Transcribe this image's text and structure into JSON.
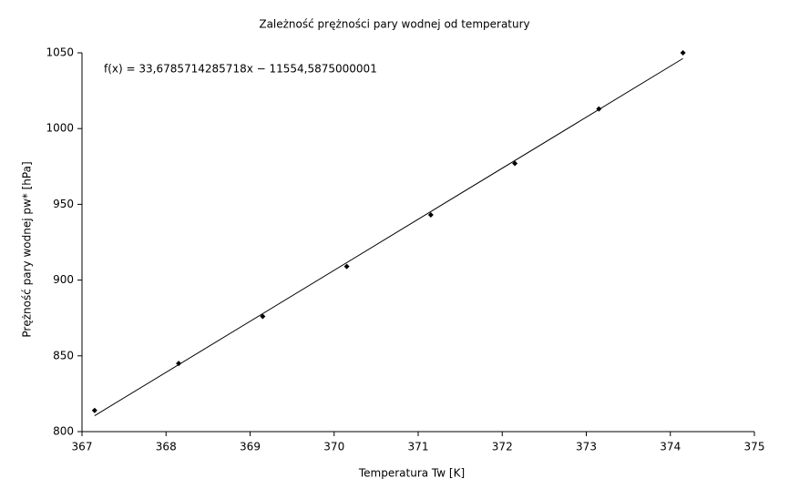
{
  "chart_data": {
    "type": "scatter",
    "title": "Zależność prężności pary wodnej od temperatury",
    "x_label": "Temperatura Tw [K]",
    "y_label": "Prężność pary wodnej pw* [hPa]",
    "annotation": "f(x) = 33,6785714285718x − 11554,5875000001",
    "series": [
      {
        "type": "scatter",
        "color": "#000000",
        "x": [
          367.15,
          368.15,
          369.15,
          370.15,
          371.15,
          372.15,
          373.15,
          374.15
        ],
        "values": [
          814,
          845,
          876,
          909,
          943,
          977,
          1013,
          1050
        ]
      },
      {
        "type": "line",
        "color": "#000000",
        "x": [
          367.15,
          374.15
        ],
        "values": [
          810.5,
          1046.25
        ]
      }
    ],
    "xlim": [
      367,
      375
    ],
    "xticks": [
      367,
      368,
      369,
      370,
      371,
      372,
      373,
      374,
      375
    ],
    "ylim": [
      800,
      1050
    ],
    "yticks": [
      800,
      850,
      900,
      950,
      1000,
      1050
    ],
    "grid": false
  }
}
